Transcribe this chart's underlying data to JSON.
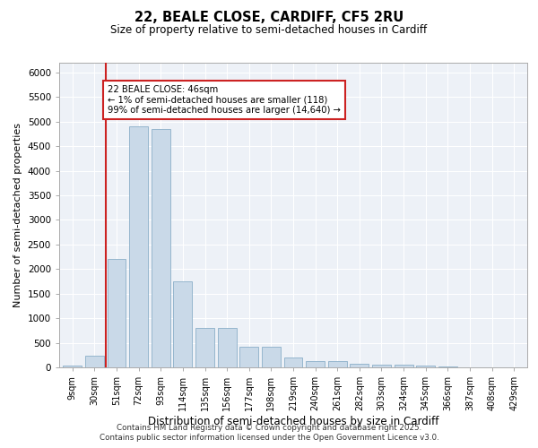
{
  "title1": "22, BEALE CLOSE, CARDIFF, CF5 2RU",
  "title2": "Size of property relative to semi-detached houses in Cardiff",
  "xlabel": "Distribution of semi-detached houses by size in Cardiff",
  "ylabel": "Number of semi-detached properties",
  "categories": [
    "9sqm",
    "30sqm",
    "51sqm",
    "72sqm",
    "93sqm",
    "114sqm",
    "135sqm",
    "156sqm",
    "177sqm",
    "198sqm",
    "219sqm",
    "240sqm",
    "261sqm",
    "282sqm",
    "303sqm",
    "324sqm",
    "345sqm",
    "366sqm",
    "387sqm",
    "408sqm",
    "429sqm"
  ],
  "values": [
    30,
    230,
    2200,
    4900,
    4850,
    1750,
    800,
    800,
    420,
    420,
    200,
    130,
    130,
    80,
    50,
    50,
    30,
    10,
    5,
    5,
    5
  ],
  "bar_color": "#c9d9e8",
  "bar_edge_color": "#8aafc8",
  "highlight_color": "#cc2222",
  "annotation_text": "22 BEALE CLOSE: 46sqm\n← 1% of semi-detached houses are smaller (118)\n99% of semi-detached houses are larger (14,640) →",
  "footer1": "Contains HM Land Registry data © Crown copyright and database right 2025.",
  "footer2": "Contains public sector information licensed under the Open Government Licence v3.0.",
  "bg_color": "#edf1f7",
  "ylim": [
    0,
    6200
  ],
  "yticks": [
    0,
    500,
    1000,
    1500,
    2000,
    2500,
    3000,
    3500,
    4000,
    4500,
    5000,
    5500,
    6000
  ]
}
